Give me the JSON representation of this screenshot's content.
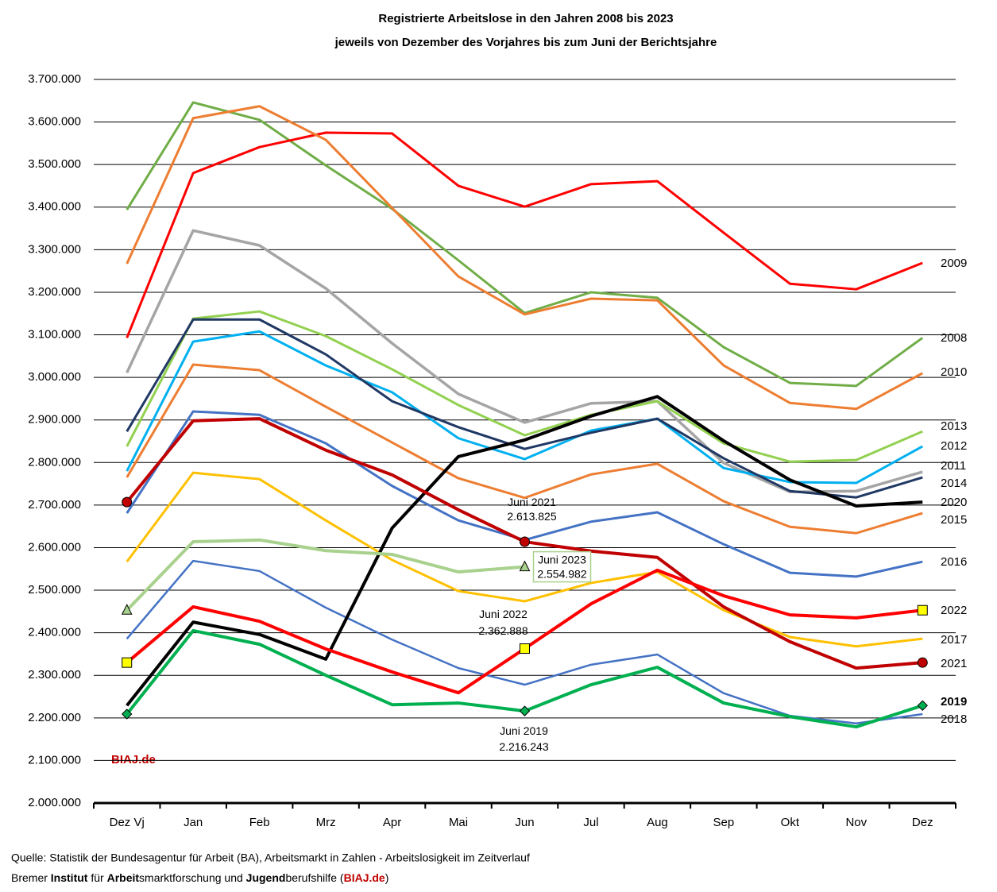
{
  "chart_data": {
    "type": "line",
    "title": "Registrierte Arbeitslose in den Jahren 2008 bis 2023",
    "subtitle": "jeweils von Dezember des Vorjahres bis zum Juni der Berichtsjahre",
    "categories": [
      "Dez Vj",
      "Jan",
      "Feb",
      "Mrz",
      "Apr",
      "Mai",
      "Jun",
      "Jul",
      "Aug",
      "Sep",
      "Okt",
      "Nov",
      "Dez"
    ],
    "ylim": [
      2000000,
      3700000
    ],
    "yticks": [
      {
        "value": 2000000,
        "label": "2.000.000"
      },
      {
        "value": 2100000,
        "label": "2.100.000"
      },
      {
        "value": 2200000,
        "label": "2.200.000"
      },
      {
        "value": 2300000,
        "label": "2.300.000"
      },
      {
        "value": 2400000,
        "label": "2.400.000"
      },
      {
        "value": 2500000,
        "label": "2.500.000"
      },
      {
        "value": 2600000,
        "label": "2.600.000"
      },
      {
        "value": 2700000,
        "label": "2.700.000"
      },
      {
        "value": 2800000,
        "label": "2.800.000"
      },
      {
        "value": 2900000,
        "label": "2.900.000"
      },
      {
        "value": 3000000,
        "label": "3.000.000"
      },
      {
        "value": 3100000,
        "label": "3.100.000"
      },
      {
        "value": 3200000,
        "label": "3.200.000"
      },
      {
        "value": 3300000,
        "label": "3.300.000"
      },
      {
        "value": 3400000,
        "label": "3.400.000"
      },
      {
        "value": 3500000,
        "label": "3.500.000"
      },
      {
        "value": 3600000,
        "label": "3.600.000"
      },
      {
        "value": 3700000,
        "label": "3.700.000"
      }
    ],
    "grid": true,
    "watermark": "BIAJ.de",
    "series": [
      {
        "name": "2008",
        "color": "#70ad47",
        "line_width": 3,
        "values": [
          3394000,
          3646000,
          3605000,
          3498000,
          3396000,
          3275000,
          3151000,
          3200000,
          3187000,
          3071000,
          2987000,
          2980000,
          3093000
        ]
      },
      {
        "name": "2009",
        "color": "#ff0000",
        "line_width": 3,
        "values": [
          3093000,
          3480000,
          3541000,
          3575000,
          3573000,
          3450000,
          3401000,
          3454000,
          3461000,
          3340000,
          3220000,
          3207000,
          3269000
        ]
      },
      {
        "name": "2010",
        "color": "#ed7d31",
        "line_width": 3,
        "values": [
          3267000,
          3609000,
          3637000,
          3558000,
          3398000,
          3237000,
          3148000,
          3185000,
          3181000,
          3028000,
          2940000,
          2926000,
          3010000
        ]
      },
      {
        "name": "2011",
        "color": "#a5a5a5",
        "line_width": 3.5,
        "values": [
          3011000,
          3345000,
          3310000,
          3209000,
          3080000,
          2961000,
          2894000,
          2939000,
          2944000,
          2799000,
          2731000,
          2733000,
          2778000
        ]
      },
      {
        "name": "2012",
        "color": "#00b0f0",
        "line_width": 3,
        "values": [
          2780000,
          3084000,
          3108000,
          3028000,
          2965000,
          2857000,
          2808000,
          2875000,
          2903000,
          2787000,
          2754000,
          2752000,
          2838000
        ]
      },
      {
        "name": "2013",
        "color": "#92d050",
        "line_width": 3,
        "values": [
          2838000,
          3138000,
          3155000,
          3097000,
          3019000,
          2935000,
          2864000,
          2912000,
          2944000,
          2845000,
          2802000,
          2806000,
          2873000
        ]
      },
      {
        "name": "2014",
        "color": "#203864",
        "line_width": 3,
        "values": [
          2873000,
          3136000,
          3136000,
          3054000,
          2944000,
          2883000,
          2832000,
          2870000,
          2903000,
          2810000,
          2733000,
          2718000,
          2765000
        ]
      },
      {
        "name": "2015",
        "color": "#ed7d31",
        "line_width": 3,
        "values": [
          2765000,
          3030000,
          3017000,
          2931000,
          2847000,
          2763000,
          2717000,
          2772000,
          2797000,
          2709000,
          2649000,
          2634000,
          2681000
        ]
      },
      {
        "name": "2016",
        "color": "#4472c4",
        "line_width": 3,
        "values": [
          2681000,
          2920000,
          2912000,
          2845000,
          2745000,
          2664000,
          2618000,
          2661000,
          2683000,
          2608000,
          2541000,
          2532000,
          2567000
        ]
      },
      {
        "name": "2017",
        "color": "#ffc000",
        "line_width": 3,
        "values": [
          2567000,
          2776000,
          2761000,
          2664000,
          2571000,
          2498000,
          2474000,
          2517000,
          2543000,
          2453000,
          2390000,
          2368000,
          2386000
        ]
      },
      {
        "name": "2018",
        "color": "#4472c4",
        "line_width": 2.5,
        "values": [
          2386000,
          2569000,
          2545000,
          2459000,
          2384000,
          2317000,
          2278000,
          2325000,
          2349000,
          2258000,
          2205000,
          2187000,
          2209000
        ]
      },
      {
        "name": "2019",
        "color": "#00b050",
        "line_width": 4,
        "marker": "diamond",
        "annotation": "Juni 2019",
        "values": [
          2209000,
          2405000,
          2373000,
          2300000,
          2231000,
          2235000,
          2216243,
          2278000,
          2319000,
          2235000,
          2203000,
          2179000,
          2229000
        ],
        "value_labels": [
          null,
          null,
          null,
          null,
          null,
          null,
          "2.216.243",
          null,
          null,
          null,
          null,
          null,
          null
        ]
      },
      {
        "name": "2020",
        "color": "#000000",
        "line_width": 4,
        "values": [
          2229000,
          2425000,
          2396000,
          2338000,
          2646000,
          2814000,
          2853000,
          2909000,
          2955000,
          2851000,
          2759000,
          2698000,
          2707000
        ]
      },
      {
        "name": "2021",
        "color": "#c00000",
        "line_width": 4,
        "marker": "circle",
        "annotation": "Juni 2021",
        "values": [
          2707000,
          2898000,
          2903000,
          2829000,
          2771000,
          2689000,
          2613825,
          2592000,
          2577000,
          2461000,
          2379000,
          2317000,
          2330000
        ],
        "value_labels": [
          null,
          null,
          null,
          null,
          null,
          null,
          "2.613.825",
          null,
          null,
          null,
          null,
          null,
          null
        ]
      },
      {
        "name": "2022",
        "color": "#ff0000",
        "line_width": 4,
        "marker": "square",
        "annotation": "Juni 2022",
        "values": [
          2330000,
          2461000,
          2427000,
          2362000,
          2308000,
          2259000,
          2362888,
          2468000,
          2547000,
          2487000,
          2442000,
          2435000,
          2453000
        ],
        "value_labels": [
          null,
          null,
          null,
          null,
          null,
          null,
          "2.362.888",
          null,
          null,
          null,
          null,
          null,
          null
        ]
      },
      {
        "color": "#a9d18e",
        "line_width": 4,
        "marker": "triangle",
        "annotation": "Juni 2023",
        "values": [
          2453000,
          2614000,
          2618000,
          2593000,
          2584000,
          2543000,
          2554982,
          null,
          null,
          null,
          null,
          null,
          null
        ],
        "value_labels": [
          null,
          null,
          null,
          null,
          null,
          null,
          "2.554.982",
          null,
          null,
          null,
          null,
          null,
          null
        ]
      }
    ],
    "source": "Quelle: Statistik der Bundesagentur für Arbeit (BA), Arbeitsmarkt in Zahlen - Arbeitslosigkeit im Zeitverlauf",
    "publisher": [
      {
        "text": "Bremer ",
        "bold": false
      },
      {
        "text": "Institut",
        "bold": true
      },
      {
        "text": " für ",
        "bold": false
      },
      {
        "text": "Arbeit",
        "bold": true
      },
      {
        "text": "smarktforschung und ",
        "bold": false
      },
      {
        "text": "Jugend",
        "bold": true
      },
      {
        "text": "berufshilfe (",
        "bold": false
      },
      {
        "text": "BIAJ.de",
        "bold": true,
        "color": "#c00000"
      },
      {
        "text": ")",
        "bold": false
      }
    ]
  }
}
